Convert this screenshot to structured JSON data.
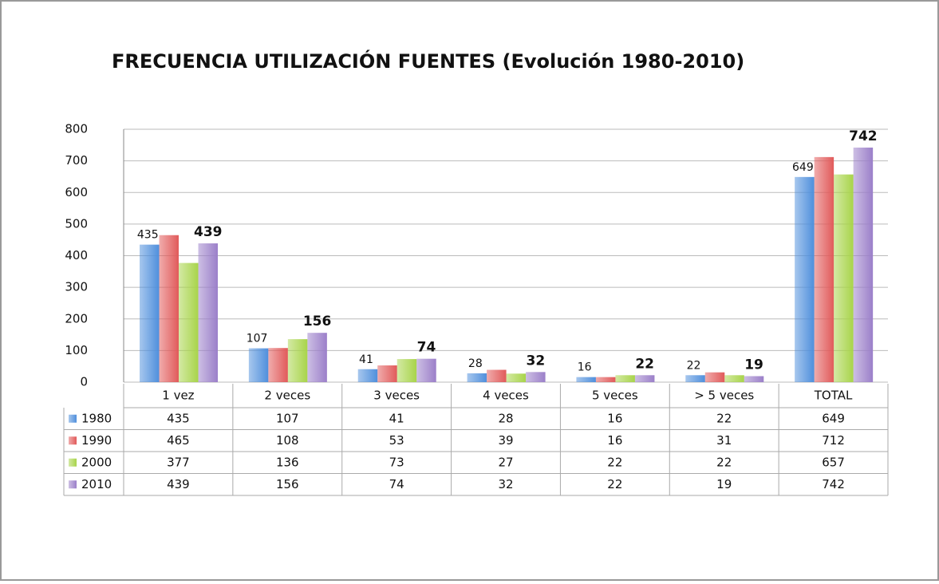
{
  "chart_data": {
    "type": "bar",
    "title": "FRECUENCIA UTILIZACIÓN FUENTES (Evolución 1980-2010)",
    "categories": [
      "1 vez",
      "2 veces",
      "3 veces",
      "4 veces",
      "5 veces",
      "> 5 veces",
      "TOTAL"
    ],
    "series": [
      {
        "name": "1980",
        "color": "#4f8fdc",
        "values": [
          435,
          107,
          41,
          28,
          16,
          22,
          649
        ]
      },
      {
        "name": "1990",
        "color": "#e15a5a",
        "values": [
          465,
          108,
          53,
          39,
          16,
          31,
          712
        ]
      },
      {
        "name": "2000",
        "color": "#a8d44a",
        "values": [
          377,
          136,
          73,
          27,
          22,
          22,
          657
        ]
      },
      {
        "name": "2010",
        "color": "#9b7fc9",
        "values": [
          439,
          156,
          74,
          32,
          22,
          19,
          742
        ]
      }
    ],
    "ylim": [
      0,
      800
    ],
    "yticks": [
      0,
      100,
      200,
      300,
      400,
      500,
      600,
      700,
      800
    ],
    "grid": true
  }
}
